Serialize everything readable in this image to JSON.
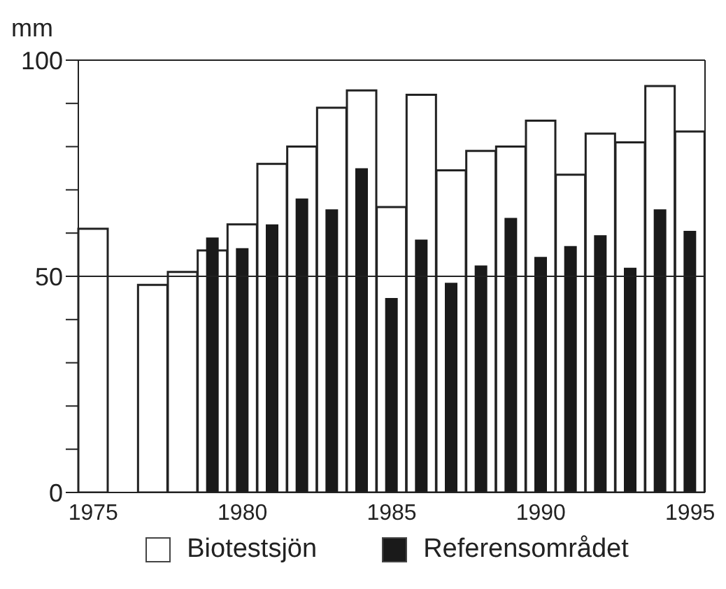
{
  "chart_data": {
    "type": "bar",
    "ylabel": "mm",
    "categories": [
      "1975",
      null,
      null,
      null,
      null,
      "1980",
      null,
      null,
      null,
      null,
      "1985",
      null,
      null,
      null,
      null,
      "1990",
      null,
      null,
      null,
      null,
      "1995"
    ],
    "series": [
      {
        "name": "Biotestsjön",
        "color": "#ffffff",
        "values": [
          61,
          null,
          48,
          51,
          56,
          62,
          76,
          80,
          89,
          93,
          66,
          92,
          74.5,
          79,
          80,
          86,
          73.5,
          83,
          81,
          94,
          83.5
        ]
      },
      {
        "name": "Referensområdet",
        "color": "#1a1a1a",
        "values": [
          null,
          null,
          null,
          null,
          59,
          56.5,
          62,
          68,
          65.5,
          75,
          45,
          58.5,
          48.5,
          52.5,
          63.5,
          54.5,
          57,
          59.5,
          52,
          65.5,
          60.5
        ]
      }
    ],
    "ylim": [
      0,
      100
    ],
    "yticks": [
      0,
      {
        "value": 10,
        "label": null
      },
      {
        "value": 20,
        "label": null
      },
      {
        "value": 30,
        "label": null
      },
      {
        "value": 40,
        "label": null
      },
      50,
      {
        "value": 60,
        "label": null
      },
      {
        "value": 70,
        "label": null
      },
      {
        "value": 80,
        "label": null
      },
      {
        "value": 90,
        "label": null
      },
      100
    ],
    "ref_lines": [
      {
        "axis": "y",
        "value": 50
      }
    ],
    "legend": "bottom"
  }
}
